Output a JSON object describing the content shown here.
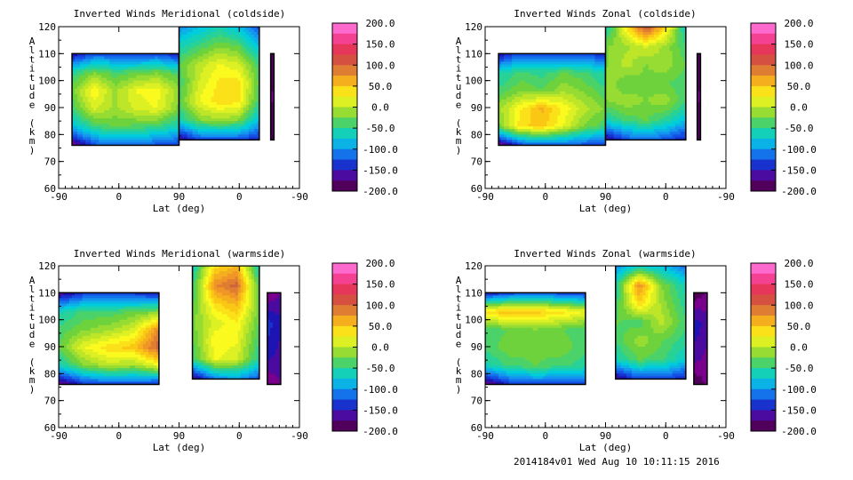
{
  "chart_data": [
    {
      "type": "heatmap",
      "title": "Inverted Winds Meridional (coldside)",
      "xlabel": "Lat (deg)",
      "ylabel": "Altitude (km)",
      "x_tick_labels": [
        "-90",
        "0",
        "90",
        "0",
        "-90"
      ],
      "y_tick_labels": [
        "60",
        "70",
        "80",
        "90",
        "100",
        "110",
        "120"
      ],
      "ylim": [
        60,
        120
      ],
      "colorbar": {
        "min": -200,
        "max": 200,
        "tick_labels": [
          "200.0",
          "150.0",
          "100.0",
          "50.0",
          "0.0",
          "-50.0",
          "-100.0",
          "-150.0",
          "-200.0"
        ]
      },
      "blocks": [
        {
          "x0": -70,
          "x1": 90,
          "y0": 76,
          "y1": 110,
          "z": [
            [
              -170,
              -120,
              -110,
              -110,
              -120,
              -130
            ],
            [
              -80,
              -40,
              -30,
              -35,
              -40,
              -60
            ],
            [
              -40,
              10,
              -10,
              10,
              20,
              -20
            ],
            [
              -20,
              30,
              -10,
              20,
              25,
              -10
            ],
            [
              -50,
              -20,
              -40,
              -30,
              -20,
              -40
            ],
            [
              -150,
              -120,
              -120,
              -130,
              -120,
              -140
            ]
          ]
        },
        {
          "x0": 90,
          "x1": 210,
          "y0": 78,
          "y1": 120,
          "z": [
            [
              -160,
              -120,
              -120,
              -120,
              -140
            ],
            [
              -60,
              -20,
              -10,
              -20,
              -80
            ],
            [
              -30,
              20,
              40,
              35,
              -40
            ],
            [
              -40,
              10,
              35,
              40,
              -30
            ],
            [
              -30,
              0,
              20,
              10,
              -40
            ],
            [
              -60,
              -40,
              -20,
              -30,
              -80
            ],
            [
              -100,
              -80,
              -60,
              -80,
              -120
            ]
          ]
        },
        {
          "x0": 227,
          "x1": 232,
          "y0": 78,
          "y1": 110,
          "z": [
            [
              -190
            ],
            [
              -180
            ],
            [
              -190
            ]
          ]
        }
      ]
    },
    {
      "type": "heatmap",
      "title": "Inverted Winds Zonal (coldside)",
      "xlabel": "Lat (deg)",
      "ylabel": "Altitude (km)",
      "x_tick_labels": [
        "-90",
        "0",
        "90",
        "0",
        "-90"
      ],
      "y_tick_labels": [
        "60",
        "70",
        "80",
        "90",
        "100",
        "110",
        "120"
      ],
      "ylim": [
        60,
        120
      ],
      "colorbar": {
        "min": -200,
        "max": 200,
        "tick_labels": [
          "200.0",
          "150.0",
          "100.0",
          "50.0",
          "0.0",
          "-50.0",
          "-100.0",
          "-150.0",
          "-200.0"
        ]
      },
      "blocks": [
        {
          "x0": -70,
          "x1": 90,
          "y0": 76,
          "y1": 110,
          "z": [
            [
              -170,
              -120,
              -110,
              -110,
              -120,
              -130
            ],
            [
              -20,
              40,
              50,
              20,
              -20,
              -40
            ],
            [
              -10,
              30,
              60,
              30,
              0,
              -20
            ],
            [
              -40,
              -20,
              -30,
              -10,
              -20,
              -40
            ],
            [
              -60,
              -40,
              -50,
              -30,
              -40,
              -60
            ],
            [
              -150,
              -120,
              -120,
              -130,
              -120,
              -140
            ]
          ]
        },
        {
          "x0": 90,
          "x1": 210,
          "y0": 78,
          "y1": 120,
          "z": [
            [
              -160,
              -120,
              -110,
              -120,
              -140
            ],
            [
              -60,
              -40,
              -30,
              -50,
              -80
            ],
            [
              -20,
              -10,
              -20,
              -10,
              -40
            ],
            [
              -10,
              -30,
              -20,
              -30,
              -40
            ],
            [
              -20,
              0,
              -20,
              -10,
              -30
            ],
            [
              -20,
              -10,
              10,
              -10,
              -40
            ],
            [
              -60,
              30,
              110,
              40,
              -60
            ]
          ]
        },
        {
          "x0": 227,
          "x1": 232,
          "y0": 78,
          "y1": 110,
          "z": [
            [
              -190
            ],
            [
              -180
            ],
            [
              -190
            ]
          ]
        }
      ]
    },
    {
      "type": "heatmap",
      "title": "Inverted Winds Meridional (warmside)",
      "xlabel": "Lat (deg)",
      "ylabel": "Altitude (km)",
      "x_tick_labels": [
        "-90",
        "0",
        "90",
        "0",
        "-90"
      ],
      "y_tick_labels": [
        "60",
        "70",
        "80",
        "90",
        "100",
        "110",
        "120"
      ],
      "ylim": [
        60,
        120
      ],
      "colorbar": {
        "min": -200,
        "max": 200,
        "tick_labels": [
          "200.0",
          "150.0",
          "100.0",
          "50.0",
          "0.0",
          "-50.0",
          "-100.0",
          "-150.0",
          "-200.0"
        ]
      },
      "blocks": [
        {
          "x0": -90,
          "x1": 60,
          "y0": 76,
          "y1": 110,
          "z": [
            [
              -170,
              -130,
              -120,
              -120,
              -130
            ],
            [
              -60,
              -20,
              0,
              -10,
              20
            ],
            [
              -30,
              20,
              40,
              50,
              100
            ],
            [
              -40,
              -20,
              -10,
              10,
              80
            ],
            [
              -60,
              -40,
              -40,
              -30,
              -20
            ],
            [
              -160,
              -130,
              -120,
              -130,
              -140
            ]
          ]
        },
        {
          "x0": 110,
          "x1": 210,
          "y0": 78,
          "y1": 120,
          "z": [
            [
              -160,
              -100,
              -90,
              -120
            ],
            [
              -40,
              20,
              10,
              -50
            ],
            [
              -30,
              30,
              20,
              -40
            ],
            [
              -20,
              10,
              30,
              -30
            ],
            [
              -30,
              40,
              60,
              -20
            ],
            [
              -40,
              80,
              100,
              -30
            ],
            [
              -60,
              40,
              60,
              -60
            ]
          ]
        },
        {
          "x0": 222,
          "x1": 242,
          "y0": 76,
          "y1": 110,
          "z": [
            [
              -180,
              -170
            ],
            [
              -150,
              -160
            ],
            [
              -140,
              -150
            ],
            [
              -180,
              -170
            ]
          ]
        }
      ]
    },
    {
      "type": "heatmap",
      "title": "Inverted Winds Zonal (warmside)",
      "xlabel": "Lat (deg)",
      "ylabel": "Altitude (km)",
      "x_tick_labels": [
        "-90",
        "0",
        "90",
        "0",
        "-90"
      ],
      "y_tick_labels": [
        "60",
        "70",
        "80",
        "90",
        "100",
        "110",
        "120"
      ],
      "ylim": [
        60,
        120
      ],
      "colorbar": {
        "min": -200,
        "max": 200,
        "tick_labels": [
          "200.0",
          "150.0",
          "100.0",
          "50.0",
          "0.0",
          "-50.0",
          "-100.0",
          "-150.0",
          "-200.0"
        ]
      },
      "blocks": [
        {
          "x0": -90,
          "x1": 60,
          "y0": 76,
          "y1": 110,
          "z": [
            [
              -170,
              -130,
              -120,
              -120,
              -130
            ],
            [
              -60,
              -40,
              -30,
              -40,
              -50
            ],
            [
              -40,
              -20,
              -30,
              -20,
              -40
            ],
            [
              -40,
              -30,
              -20,
              -30,
              -40
            ],
            [
              40,
              60,
              50,
              40,
              20
            ],
            [
              -140,
              -120,
              -110,
              -120,
              -130
            ]
          ]
        },
        {
          "x0": 105,
          "x1": 210,
          "y0": 78,
          "y1": 120,
          "z": [
            [
              -160,
              -120,
              -120,
              -140
            ],
            [
              -60,
              -30,
              -40,
              -70
            ],
            [
              -40,
              -10,
              -30,
              -50
            ],
            [
              -30,
              -40,
              0,
              -40
            ],
            [
              -40,
              40,
              -10,
              -50
            ],
            [
              -50,
              80,
              -20,
              -60
            ],
            [
              -100,
              -60,
              -80,
              -110
            ]
          ]
        },
        {
          "x0": 222,
          "x1": 242,
          "y0": 76,
          "y1": 110,
          "z": [
            [
              -190,
              -180
            ],
            [
              -160,
              -170
            ],
            [
              -150,
              -160
            ],
            [
              -190,
              -180
            ]
          ]
        }
      ]
    }
  ],
  "footer": "2014184v01 Wed Aug 10 10:11:15 2016"
}
